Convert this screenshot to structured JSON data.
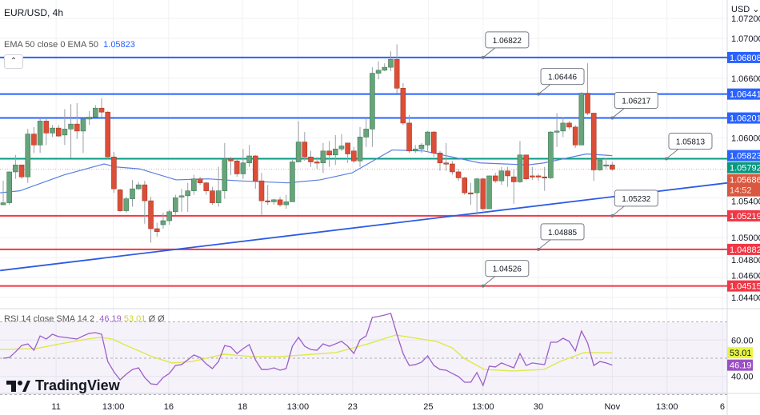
{
  "header": {
    "symbol": "EUR/USD, 4h",
    "currency": "USD",
    "currency_chevron": "⌄"
  },
  "ema_legend": {
    "label": "EMA 50 close 0 EMA 50",
    "value": "1.05823",
    "color": "#2962ff"
  },
  "rsi_legend": {
    "label": "RSI 14 close SMA 14 2",
    "rsi_value": "46.19",
    "sma_value": "53.01",
    "extra": "Ø Ø",
    "rsi_color": "#9c5fc8",
    "sma_color": "#dfe84a"
  },
  "logo": {
    "text": "TradingView"
  },
  "collapse_icon": "chevron-up",
  "colors": {
    "up": "#67a47b",
    "down": "#dc4e37",
    "support": "#f23645",
    "resistance": "#2962ff",
    "pivot": "#089981",
    "ema": "#5b7fe0",
    "trend": "#2d5be3"
  },
  "chart_data": {
    "type": "candlestick",
    "symbol": "EUR/USD",
    "timeframe": "4h",
    "price_ticks": [
      "1.07200",
      "1.07000",
      "1.06600",
      "1.06000",
      "1.05400",
      "1.05000",
      "1.04800",
      "1.04600",
      "1.04400"
    ],
    "time_ticks": [
      {
        "label": "11",
        "index": 8.6
      },
      {
        "label": "13:00",
        "index": 17.9
      },
      {
        "label": "16",
        "index": 26.9
      },
      {
        "label": "18",
        "index": 38.9
      },
      {
        "label": "13:00",
        "index": 47.9
      },
      {
        "label": "23",
        "index": 56.8
      },
      {
        "label": "25",
        "index": 69.1
      },
      {
        "label": "13:00",
        "index": 78
      },
      {
        "label": "30",
        "index": 87
      },
      {
        "label": "Nov",
        "index": 99
      },
      {
        "label": "13:00",
        "index": 107.9
      },
      {
        "label": "6",
        "index": 116.9
      }
    ],
    "ohlc": [
      [
        1.0533,
        1.0557,
        1.0533,
        1.0535
      ],
      [
        1.0535,
        1.0566,
        1.0533,
        1.0566
      ],
      [
        1.0566,
        1.0583,
        1.0559,
        1.0573
      ],
      [
        1.0573,
        1.0573,
        1.0559,
        1.0561
      ],
      [
        1.0561,
        1.0609,
        1.0555,
        1.0604
      ],
      [
        1.0604,
        1.0611,
        1.0585,
        1.0593
      ],
      [
        1.0593,
        1.0619,
        1.0585,
        1.0617
      ],
      [
        1.0617,
        1.0619,
        1.0593,
        1.0605
      ],
      [
        1.0605,
        1.0613,
        1.0601,
        1.061
      ],
      [
        1.061,
        1.0613,
        1.0601,
        1.0602
      ],
      [
        1.0603,
        1.0629,
        1.0593,
        1.0609
      ],
      [
        1.0609,
        1.0634,
        1.058,
        1.0614
      ],
      [
        1.0614,
        1.0635,
        1.0599,
        1.0607
      ],
      [
        1.0607,
        1.062,
        1.0585,
        1.0619
      ],
      [
        1.0619,
        1.0627,
        1.0613,
        1.0621
      ],
      [
        1.0621,
        1.0633,
        1.0621,
        1.063
      ],
      [
        1.063,
        1.064,
        1.0621,
        1.0626
      ],
      [
        1.0626,
        1.0627,
        1.0579,
        1.0581
      ],
      [
        1.0581,
        1.0586,
        1.0545,
        1.0549
      ],
      [
        1.0548,
        1.0549,
        1.0526,
        1.0527
      ],
      [
        1.0527,
        1.0541,
        1.0525,
        1.0539
      ],
      [
        1.0539,
        1.0558,
        1.0531,
        1.0549
      ],
      [
        1.0549,
        1.0556,
        1.0548,
        1.0553
      ],
      [
        1.0553,
        1.0557,
        1.0514,
        1.0537
      ],
      [
        1.0537,
        1.0541,
        1.0495,
        1.0509
      ],
      [
        1.0509,
        1.0515,
        1.0501,
        1.0506
      ],
      [
        1.0513,
        1.0525,
        1.0509,
        1.0517
      ],
      [
        1.0517,
        1.0528,
        1.0513,
        1.0526
      ],
      [
        1.0526,
        1.0543,
        1.0523,
        1.054
      ],
      [
        1.0541,
        1.0549,
        1.0526,
        1.0542
      ],
      [
        1.0542,
        1.0555,
        1.0526,
        1.0547
      ],
      [
        1.0547,
        1.0563,
        1.0543,
        1.0559
      ],
      [
        1.0559,
        1.0561,
        1.0553,
        1.0555
      ],
      [
        1.0555,
        1.0556,
        1.0543,
        1.0547
      ],
      [
        1.0547,
        1.0551,
        1.0533,
        1.0535
      ],
      [
        1.0535,
        1.0571,
        1.0531,
        1.0547
      ],
      [
        1.0547,
        1.0595,
        1.0539,
        1.0579
      ],
      [
        1.0579,
        1.0581,
        1.0563,
        1.0577
      ],
      [
        1.0577,
        1.0579,
        1.0561,
        1.0564
      ],
      [
        1.0564,
        1.0589,
        1.0559,
        1.0575
      ],
      [
        1.0575,
        1.0593,
        1.0571,
        1.0582
      ],
      [
        1.0582,
        1.0583,
        1.0549,
        1.0557
      ],
      [
        1.0557,
        1.0565,
        1.0523,
        1.0537
      ],
      [
        1.0537,
        1.0553,
        1.0533,
        1.0536
      ],
      [
        1.0536,
        1.0539,
        1.0533,
        1.0538
      ],
      [
        1.0538,
        1.0541,
        1.0531,
        1.0533
      ],
      [
        1.0533,
        1.0543,
        1.0529,
        1.0536
      ],
      [
        1.0536,
        1.0579,
        1.0536,
        1.0576
      ],
      [
        1.0576,
        1.0617,
        1.0576,
        1.0596
      ],
      [
        1.0596,
        1.0606,
        1.0577,
        1.0581
      ],
      [
        1.0581,
        1.0587,
        1.0571,
        1.0576
      ],
      [
        1.0576,
        1.0581,
        1.0569,
        1.0575
      ],
      [
        1.0575,
        1.0595,
        1.0565,
        1.0587
      ],
      [
        1.0587,
        1.0597,
        1.0571,
        1.0583
      ],
      [
        1.0583,
        1.0603,
        1.0573,
        1.0589
      ],
      [
        1.0589,
        1.0604,
        1.0587,
        1.0592
      ],
      [
        1.0595,
        1.0595,
        1.0575,
        1.0584
      ],
      [
        1.0587,
        1.0591,
        1.0575,
        1.0577
      ],
      [
        1.0577,
        1.0611,
        1.0571,
        1.0601
      ],
      [
        1.0601,
        1.0619,
        1.0591,
        1.0609
      ],
      [
        1.0609,
        1.0671,
        1.0591,
        1.0665
      ],
      [
        1.0665,
        1.0677,
        1.0659,
        1.0668
      ],
      [
        1.0668,
        1.0675,
        1.0667,
        1.0671
      ],
      [
        1.0671,
        1.0687,
        1.0667,
        1.0679
      ],
      [
        1.0679,
        1.0694,
        1.0645,
        1.065
      ],
      [
        1.065,
        1.0655,
        1.0613,
        1.0615
      ],
      [
        1.0615,
        1.0623,
        1.0585,
        1.0587
      ],
      [
        1.0587,
        1.0593,
        1.0585,
        1.0589
      ],
      [
        1.0589,
        1.0595,
        1.0585,
        1.0593
      ],
      [
        1.0593,
        1.0607,
        1.0587,
        1.0606
      ],
      [
        1.0606,
        1.0607,
        1.0581,
        1.0585
      ],
      [
        1.0585,
        1.0587,
        1.0567,
        1.0575
      ],
      [
        1.0575,
        1.0595,
        1.0567,
        1.0574
      ],
      [
        1.0574,
        1.0577,
        1.0563,
        1.0566
      ],
      [
        1.0566,
        1.0569,
        1.0557,
        1.056
      ],
      [
        1.056,
        1.0561,
        1.0543,
        1.0545
      ],
      [
        1.0545,
        1.0555,
        1.0533,
        1.0544
      ],
      [
        1.0545,
        1.056,
        1.0523,
        1.0559
      ],
      [
        1.0559,
        1.056,
        1.0527,
        1.0529
      ],
      [
        1.0529,
        1.0562,
        1.0529,
        1.0562
      ],
      [
        1.0562,
        1.0565,
        1.0555,
        1.0557
      ],
      [
        1.0557,
        1.0571,
        1.0553,
        1.0567
      ],
      [
        1.0567,
        1.0571,
        1.0551,
        1.0562
      ],
      [
        1.0561,
        1.0569,
        1.0534,
        1.0556
      ],
      [
        1.0556,
        1.0597,
        1.0555,
        1.0583
      ],
      [
        1.0583,
        1.0583,
        1.0558,
        1.0559
      ],
      [
        1.0562,
        1.0571,
        1.0558,
        1.0561
      ],
      [
        1.0562,
        1.0564,
        1.0557,
        1.0561
      ],
      [
        1.0561,
        1.0571,
        1.0547,
        1.056
      ],
      [
        1.056,
        1.0607,
        1.0559,
        1.0606
      ],
      [
        1.0606,
        1.0625,
        1.0591,
        1.0607
      ],
      [
        1.0607,
        1.0621,
        1.0601,
        1.0615
      ],
      [
        1.0615,
        1.0617,
        1.0609,
        1.0611
      ],
      [
        1.0611,
        1.0613,
        1.059,
        1.0593
      ],
      [
        1.0593,
        1.0646,
        1.0593,
        1.0645
      ],
      [
        1.0645,
        1.0675,
        1.0623,
        1.0625
      ],
      [
        1.0625,
        1.0625,
        1.0557,
        1.0568
      ],
      [
        1.0568,
        1.0579,
        1.0567,
        1.0578
      ],
      [
        1.0573,
        1.058,
        1.0569,
        1.0573
      ],
      [
        1.0573,
        1.0576,
        1.0567,
        1.05686
      ]
    ],
    "ema50": [
      [
        -0.5,
        1.0545
      ],
      [
        2.7,
        1.0547
      ],
      [
        9.9,
        1.0563
      ],
      [
        16.4,
        1.0574
      ],
      [
        18.3,
        1.0571
      ],
      [
        22.2,
        1.0569
      ],
      [
        28.1,
        1.0558
      ],
      [
        33.3,
        1.0559
      ],
      [
        38.5,
        1.0557
      ],
      [
        46.3,
        1.0555
      ],
      [
        51.5,
        1.0558
      ],
      [
        56.7,
        1.0565
      ],
      [
        63.2,
        1.0588
      ],
      [
        68.4,
        1.0587
      ],
      [
        77.5,
        1.0575
      ],
      [
        85.3,
        1.0573
      ],
      [
        87.9,
        1.0575
      ],
      [
        94.8,
        1.0584
      ],
      [
        99,
        1.05823
      ]
    ],
    "trendline": [
      [
        -0.5,
        1.0467
      ],
      [
        117.8,
        1.0555
      ]
    ],
    "levels": [
      {
        "price": 1.06808,
        "label": "1.06808",
        "kind": "resistance",
        "callout": "1.06822",
        "callout_index": 78
      },
      {
        "price": 1.06441,
        "label": "1.06441",
        "kind": "resistance",
        "callout": "1.06446",
        "callout_index": 87
      },
      {
        "price": 1.06201,
        "label": "1.06201",
        "kind": "resistance",
        "callout": "1.06217",
        "callout_index": 99
      },
      {
        "price": 1.05792,
        "label": "1.05792",
        "kind": "pivot",
        "callout": "1.05813",
        "callout_index": 107.8
      },
      {
        "price": 1.05219,
        "label": "1.05219",
        "kind": "support",
        "callout": "1.05232",
        "callout_index": 99
      },
      {
        "price": 1.04882,
        "label": "1.04882",
        "kind": "support",
        "callout": "1.04885",
        "callout_index": 87
      },
      {
        "price": 1.04515,
        "label": "1.04515",
        "kind": "support",
        "callout": "1.04526",
        "callout_index": 78
      }
    ],
    "ema_axis_label": "1.05823",
    "last_price": {
      "label": "1.05686",
      "countdown": "14:52",
      "price": 1.05686
    },
    "rsi": {
      "ticks": [
        "60.00",
        "40.00"
      ],
      "bands": [
        70,
        50,
        30
      ],
      "values": [
        50.0,
        50.4,
        53.5,
        57.0,
        57.9,
        54.4,
        62.3,
        60.6,
        63.2,
        61.9,
        61.5,
        61.0,
        60.6,
        62.3,
        63.7,
        64.1,
        63.2,
        48.2,
        42.5,
        38.1,
        41.2,
        43.8,
        44.7,
        39.4,
        35.9,
        35.5,
        39.4,
        41.6,
        46.0,
        46.5,
        49.1,
        51.8,
        50.4,
        46.9,
        44.3,
        48.2,
        57.0,
        56.2,
        52.6,
        55.3,
        57.5,
        49.1,
        43.8,
        43.8,
        44.7,
        43.4,
        44.3,
        56.6,
        61.5,
        56.6,
        54.8,
        54.4,
        57.9,
        56.6,
        57.9,
        59.3,
        56.6,
        52.6,
        60.1,
        62.3,
        72.5,
        73.0,
        73.8,
        74.7,
        63.2,
        52.6,
        46.0,
        46.5,
        47.8,
        51.3,
        46.0,
        43.8,
        43.4,
        41.6,
        39.9,
        36.8,
        36.8,
        42.1,
        35.0,
        45.6,
        45.2,
        47.4,
        46.0,
        44.7,
        52.6,
        46.0,
        47.4,
        46.9,
        46.5,
        58.8,
        58.8,
        61.0,
        59.3,
        54.0,
        65.0,
        58.4,
        46.0,
        48.2,
        47.4,
        46.19
      ],
      "sma": [
        [
          -0.5,
          54.8
        ],
        [
          5.3,
          55.3
        ],
        [
          9.2,
          57.9
        ],
        [
          13.8,
          60.6
        ],
        [
          15.7,
          61.5
        ],
        [
          17.7,
          60.6
        ],
        [
          20.3,
          56.6
        ],
        [
          24.2,
          50.9
        ],
        [
          27.4,
          47.4
        ],
        [
          30.7,
          48.2
        ],
        [
          35.9,
          52.2
        ],
        [
          40.4,
          50.9
        ],
        [
          45,
          50.9
        ],
        [
          54.1,
          53.1
        ],
        [
          59.3,
          57.9
        ],
        [
          63.8,
          62.8
        ],
        [
          70.4,
          59.3
        ],
        [
          73,
          55.7
        ],
        [
          74.9,
          50
        ],
        [
          78.2,
          43.8
        ],
        [
          82.7,
          43
        ],
        [
          87.9,
          43.8
        ],
        [
          90.5,
          48.2
        ],
        [
          94.4,
          53.1
        ],
        [
          99,
          53.01
        ]
      ],
      "last_rsi_label": "46.19",
      "last_sma_label": "53.01"
    }
  }
}
